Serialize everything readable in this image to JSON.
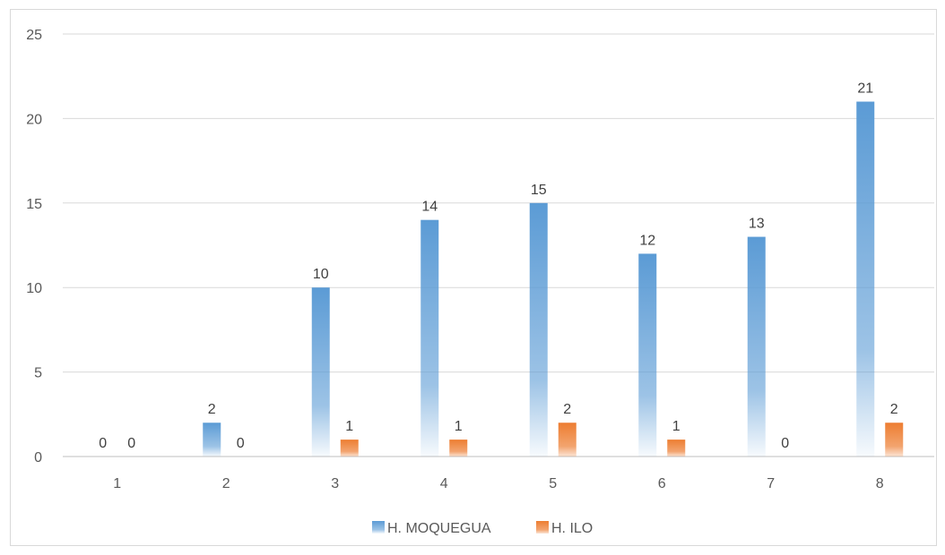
{
  "chart_data": {
    "type": "bar",
    "title": "",
    "xlabel": "",
    "ylabel": "",
    "categories": [
      "1",
      "2",
      "3",
      "4",
      "5",
      "6",
      "7",
      "8"
    ],
    "series": [
      {
        "name": "H. MOQUEGUA",
        "values": [
          0,
          2,
          10,
          14,
          15,
          12,
          13,
          21
        ],
        "color": "#5b9bd5"
      },
      {
        "name": "H. ILO",
        "values": [
          0,
          0,
          1,
          1,
          2,
          1,
          0,
          2
        ],
        "color": "#ed7d31"
      }
    ],
    "ylim": [
      0,
      25
    ],
    "yticks": [
      0,
      5,
      10,
      15,
      20,
      25
    ],
    "grid": true,
    "data_labels": true,
    "legend": "bottom"
  }
}
